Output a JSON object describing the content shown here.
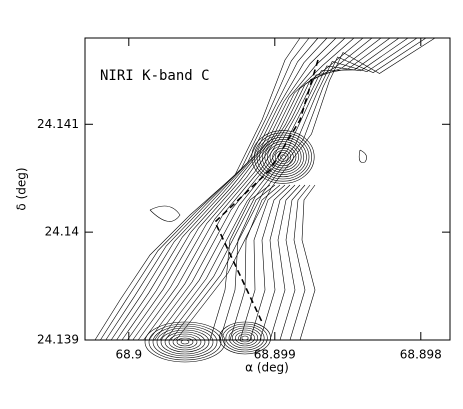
{
  "chart_data": {
    "type": "contour",
    "title": "NIRI K-band C",
    "x_label": "α (deg)",
    "y_label": "δ (deg)",
    "xlim": [
      68.9003,
      68.8978
    ],
    "ylim": [
      24.139,
      24.1418
    ],
    "xticks": [
      68.9,
      68.899,
      68.898
    ],
    "yticks": [
      24.139,
      24.14,
      24.141
    ]
  }
}
